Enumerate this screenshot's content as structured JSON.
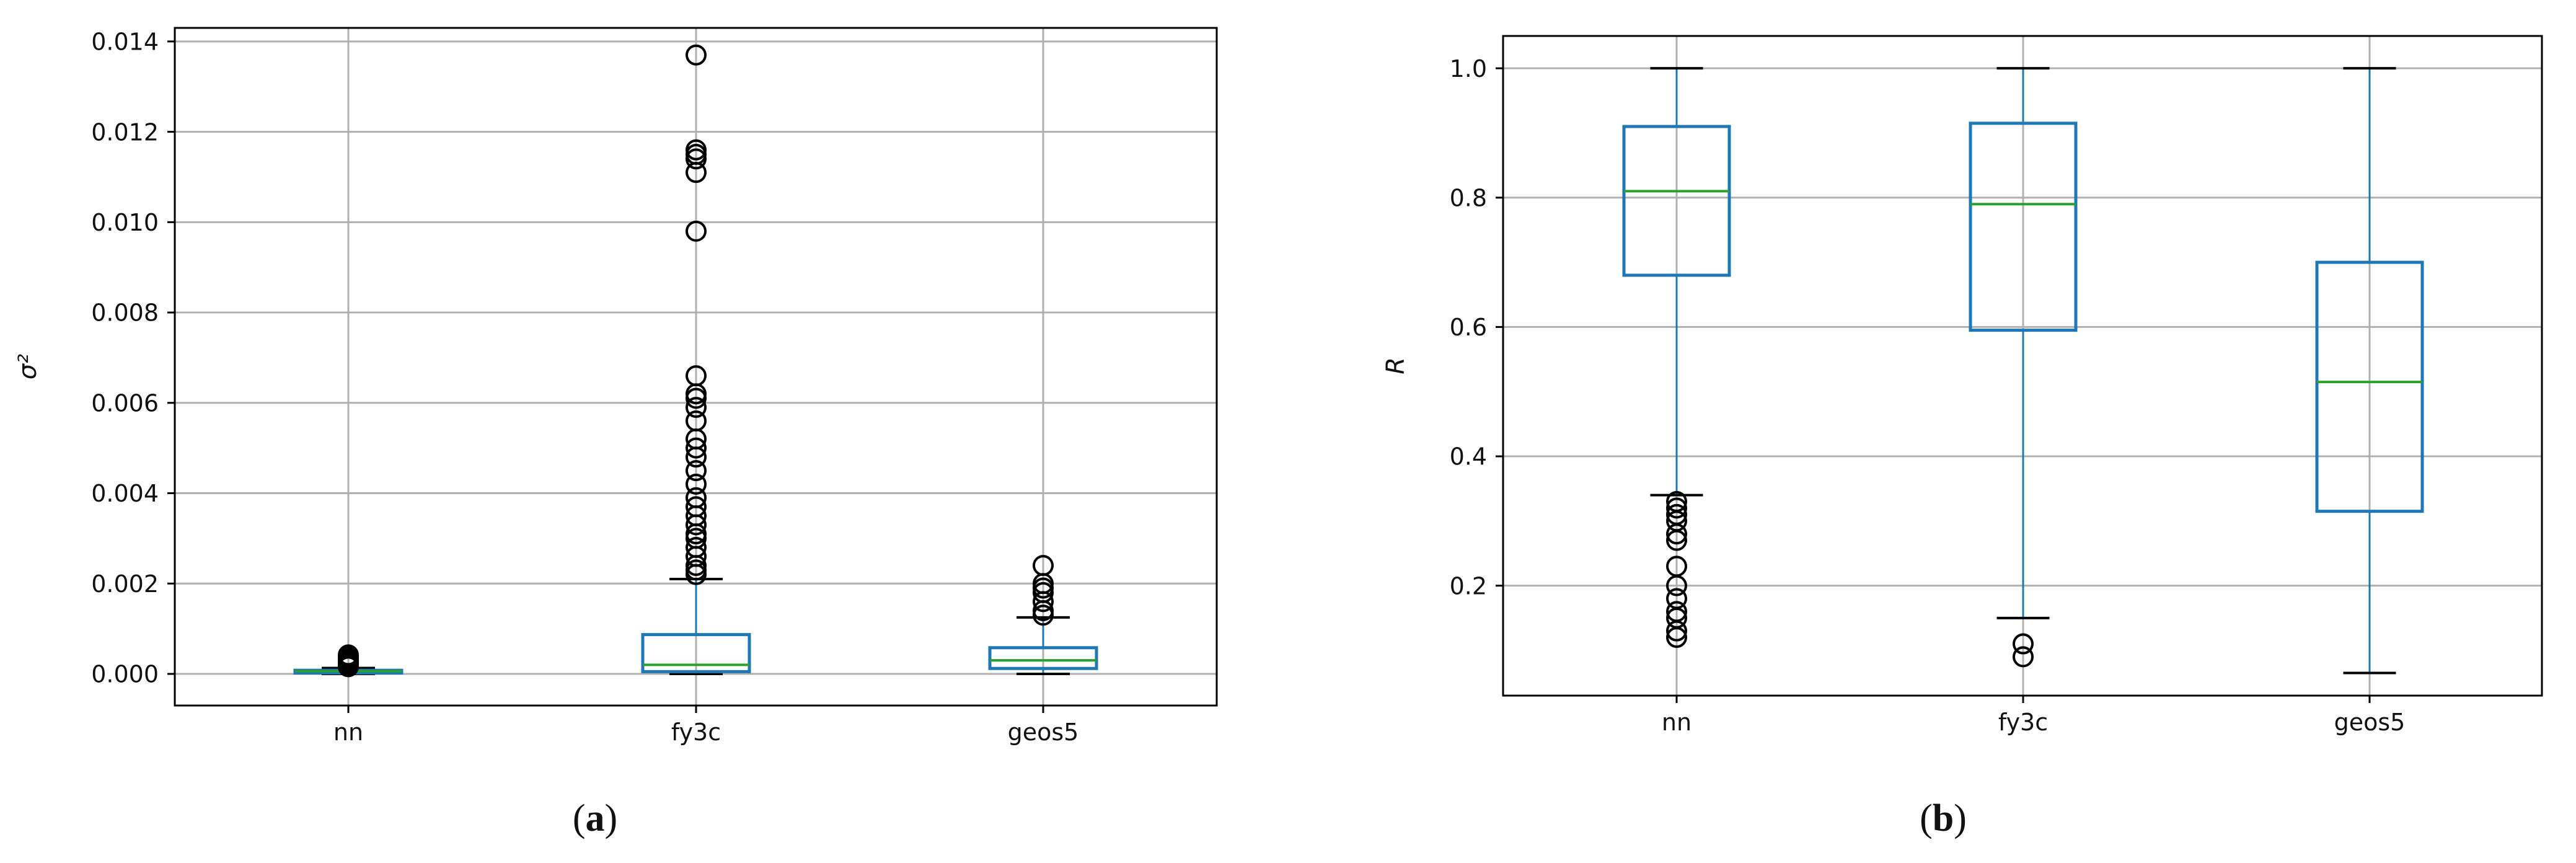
{
  "colors": {
    "box": "#1f77b4",
    "median": "#2ca02c",
    "grid": "#b0b0b0",
    "axis": "#000000",
    "outlier": "#000000"
  },
  "chart_data": [
    {
      "type": "box",
      "panel_label": "(a)",
      "panel_letter": "a",
      "ylabel": "σ²",
      "ylim": [
        -0.0007,
        0.0143
      ],
      "yticks": [
        0.0,
        0.002,
        0.004,
        0.006,
        0.008,
        0.01,
        0.012,
        0.014
      ],
      "ytick_labels": [
        "0.000",
        "0.002",
        "0.004",
        "0.006",
        "0.008",
        "0.010",
        "0.012",
        "0.014"
      ],
      "categories": [
        "nn",
        "fy3c",
        "geos5"
      ],
      "grid": true,
      "boxes": [
        {
          "whisker_low": 0.0,
          "q1": 2e-05,
          "median": 6e-05,
          "q3": 8e-05,
          "whisker_high": 0.00013,
          "outliers": [
            0.00016,
            0.0002,
            0.00024,
            0.00028,
            0.00031,
            0.00035,
            0.00038,
            0.00042
          ]
        },
        {
          "whisker_low": 0.0,
          "q1": 5e-05,
          "median": 0.0002,
          "q3": 0.00087,
          "whisker_high": 0.0021,
          "outliers": [
            0.0022,
            0.0023,
            0.0024,
            0.0026,
            0.0028,
            0.003,
            0.0031,
            0.0033,
            0.0035,
            0.0037,
            0.0039,
            0.0042,
            0.0045,
            0.0048,
            0.005,
            0.0052,
            0.0056,
            0.0059,
            0.0061,
            0.0062,
            0.0066,
            0.0098,
            0.0111,
            0.0114,
            0.0115,
            0.0116,
            0.0137
          ]
        },
        {
          "whisker_low": 0.0,
          "q1": 0.00012,
          "median": 0.0003,
          "q3": 0.00058,
          "whisker_high": 0.00125,
          "outliers": [
            0.0013,
            0.0014,
            0.0016,
            0.0018,
            0.0019,
            0.002,
            0.0024
          ]
        }
      ]
    },
    {
      "type": "box",
      "panel_label": "(b)",
      "panel_letter": "b",
      "ylabel": "R",
      "ylim": [
        0.03,
        1.05
      ],
      "yticks": [
        0.2,
        0.4,
        0.6,
        0.8,
        1.0
      ],
      "ytick_labels": [
        "0.2",
        "0.4",
        "0.6",
        "0.8",
        "1.0"
      ],
      "categories": [
        "nn",
        "fy3c",
        "geos5"
      ],
      "grid": true,
      "boxes": [
        {
          "whisker_low": 0.34,
          "q1": 0.68,
          "median": 0.81,
          "q3": 0.91,
          "whisker_high": 1.0,
          "outliers": [
            0.12,
            0.13,
            0.15,
            0.16,
            0.18,
            0.2,
            0.23,
            0.27,
            0.28,
            0.3,
            0.31,
            0.32,
            0.33
          ]
        },
        {
          "whisker_low": 0.15,
          "q1": 0.595,
          "median": 0.79,
          "q3": 0.915,
          "whisker_high": 1.0,
          "outliers": [
            0.09,
            0.11
          ]
        },
        {
          "whisker_low": 0.065,
          "q1": 0.315,
          "median": 0.515,
          "q3": 0.7,
          "whisker_high": 1.0,
          "outliers": []
        }
      ]
    }
  ]
}
